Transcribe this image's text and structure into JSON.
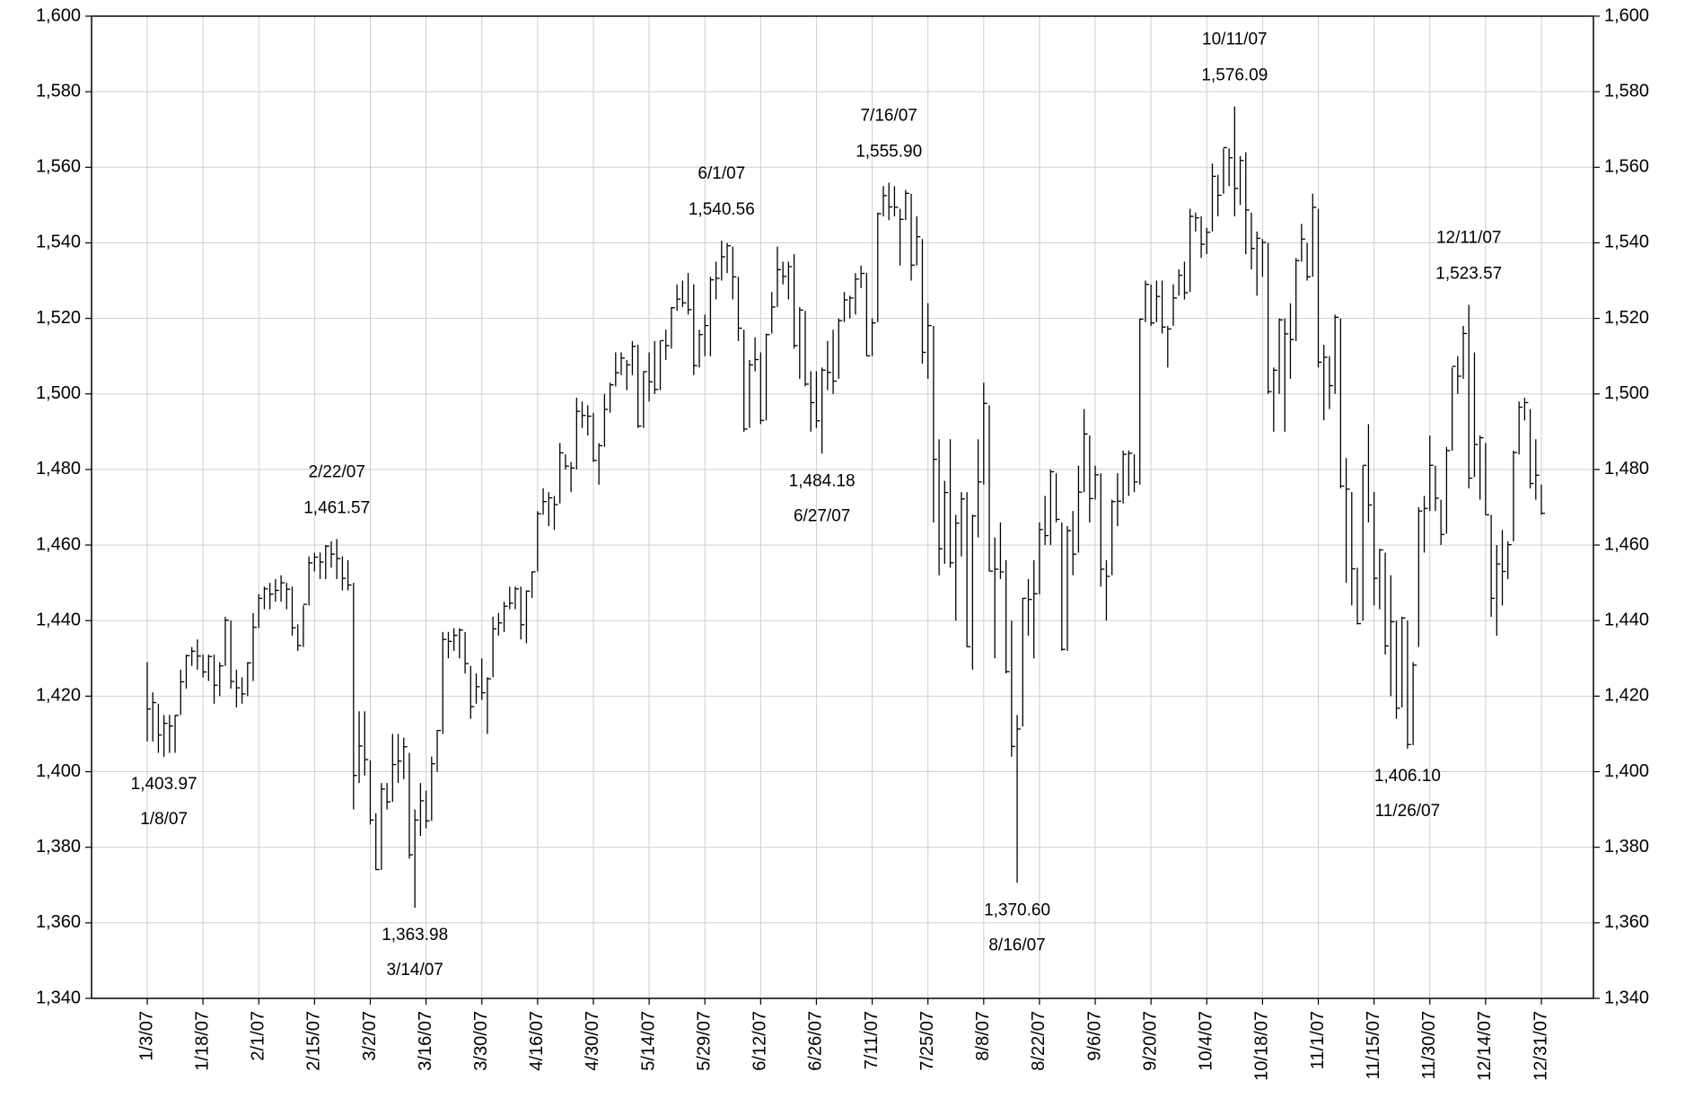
{
  "chart_data": {
    "type": "hlc",
    "color": "#000000",
    "grid": true,
    "categories": [
      "1/3/07",
      null,
      null,
      null,
      null,
      null,
      null,
      null,
      null,
      null,
      "1/18/07",
      null,
      null,
      null,
      null,
      null,
      null,
      null,
      null,
      null,
      "2/1/07",
      null,
      null,
      null,
      null,
      null,
      null,
      null,
      null,
      null,
      "2/15/07",
      null,
      null,
      null,
      null,
      null,
      null,
      null,
      null,
      null,
      "3/2/07",
      null,
      null,
      null,
      null,
      null,
      null,
      null,
      null,
      null,
      "3/16/07",
      null,
      null,
      null,
      null,
      null,
      null,
      null,
      null,
      null,
      "3/30/07",
      null,
      null,
      null,
      null,
      null,
      null,
      null,
      null,
      null,
      "4/16/07",
      null,
      null,
      null,
      null,
      null,
      null,
      null,
      null,
      null,
      "4/30/07",
      null,
      null,
      null,
      null,
      null,
      null,
      null,
      null,
      null,
      "5/14/07",
      null,
      null,
      null,
      null,
      null,
      null,
      null,
      null,
      null,
      "5/29/07",
      null,
      null,
      null,
      null,
      null,
      null,
      null,
      null,
      null,
      "6/12/07",
      null,
      null,
      null,
      null,
      null,
      null,
      null,
      null,
      null,
      "6/26/07",
      null,
      null,
      null,
      null,
      null,
      null,
      null,
      null,
      null,
      "7/11/07",
      null,
      null,
      null,
      null,
      null,
      null,
      null,
      null,
      null,
      "7/25/07",
      null,
      null,
      null,
      null,
      null,
      null,
      null,
      null,
      null,
      "8/8/07",
      null,
      null,
      null,
      null,
      null,
      null,
      null,
      null,
      null,
      "8/22/07",
      null,
      null,
      null,
      null,
      null,
      null,
      null,
      null,
      null,
      "9/6/07",
      null,
      null,
      null,
      null,
      null,
      null,
      null,
      null,
      null,
      "9/20/07",
      null,
      null,
      null,
      null,
      null,
      null,
      null,
      null,
      null,
      "10/4/07",
      null,
      null,
      null,
      null,
      null,
      null,
      null,
      null,
      null,
      "10/18/07",
      null,
      null,
      null,
      null,
      null,
      null,
      null,
      null,
      null,
      "11/1/07",
      null,
      null,
      null,
      null,
      null,
      null,
      null,
      null,
      null,
      "11/15/07",
      null,
      null,
      null,
      null,
      null,
      null,
      null,
      null,
      null,
      "11/30/07",
      null,
      null,
      null,
      null,
      null,
      null,
      null,
      null,
      null,
      "12/14/07",
      null,
      null,
      null,
      null,
      null,
      null,
      null,
      null,
      null,
      "12/31/07"
    ],
    "high": [
      1429,
      1421,
      1418,
      1415,
      1415,
      1415,
      1427,
      1431,
      1433,
      1435,
      1431,
      1431,
      1431,
      1429,
      1441,
      1440,
      1427,
      1425,
      1429,
      1442,
      1447,
      1449,
      1450,
      1451,
      1452,
      1450,
      1449,
      1439,
      1444,
      1457,
      1458,
      1458,
      1460,
      1461,
      1461.57,
      1457,
      1456,
      1450,
      1416,
      1416,
      1403,
      1389,
      1397,
      1397,
      1410,
      1410,
      1409,
      1405,
      1390,
      1397,
      1395,
      1404,
      1411,
      1437,
      1437,
      1438,
      1438,
      1437,
      1428,
      1426,
      1430,
      1425,
      1441,
      1442,
      1445,
      1449,
      1449,
      1449,
      1448,
      1453,
      1469,
      1475,
      1474,
      1473,
      1487,
      1484,
      1482,
      1499,
      1498,
      1497,
      1495,
      1487,
      1500,
      1503,
      1511,
      1511,
      1509,
      1514,
      1513,
      1506,
      1511,
      1514,
      1514,
      1517,
      1523,
      1529,
      1530,
      1532,
      1529,
      1517,
      1521,
      1531,
      1535,
      1540.56,
      1540,
      1539,
      1531,
      1517,
      1509,
      1515,
      1511,
      1516,
      1527,
      1539,
      1535,
      1535,
      1537,
      1523,
      1522,
      1506,
      1506,
      1507,
      1514,
      1517,
      1520,
      1527,
      1526,
      1532,
      1534,
      1532,
      1520,
      1548,
      1555,
      1555.9,
      1555,
      1549,
      1554,
      1553,
      1547,
      1541,
      1524,
      1518,
      1488,
      1477,
      1488,
      1468,
      1474,
      1474,
      1468,
      1488,
      1503,
      1497,
      1462,
      1466,
      1456,
      1440,
      1415,
      1446,
      1451,
      1456,
      1466,
      1473,
      1480,
      1479,
      1466,
      1465,
      1469,
      1481,
      1496,
      1489,
      1481,
      1479,
      1456,
      1472,
      1479,
      1485,
      1485,
      1484,
      1520,
      1530,
      1529,
      1530,
      1530,
      1518,
      1529,
      1533,
      1535,
      1549,
      1548,
      1547,
      1544,
      1561,
      1558,
      1565,
      1565,
      1576.09,
      1563,
      1564,
      1548,
      1543,
      1541,
      1540,
      1507,
      1520,
      1520,
      1524,
      1536,
      1545,
      1540,
      1553,
      1549,
      1513,
      1510,
      1521,
      1520,
      1483,
      1474,
      1454,
      1481,
      1492,
      1474,
      1459,
      1458,
      1452,
      1440,
      1441,
      1440,
      1429,
      1470,
      1473,
      1489,
      1481,
      1472,
      1486,
      1507,
      1510,
      1518,
      1523.57,
      1511,
      1489,
      1487,
      1468,
      1460,
      1464,
      1461,
      1485,
      1498,
      1499,
      1496,
      1488,
      1476
    ],
    "low": [
      1408,
      1408,
      1405,
      1403.97,
      1405,
      1405,
      1415,
      1422,
      1428,
      1427,
      1425,
      1424,
      1418,
      1420,
      1428,
      1422,
      1417,
      1418,
      1420,
      1424,
      1438,
      1443,
      1443,
      1445,
      1445,
      1443,
      1436,
      1432,
      1433,
      1444,
      1453,
      1451,
      1451,
      1454,
      1451,
      1448,
      1448,
      1390,
      1397,
      1399,
      1386,
      1374,
      1374,
      1390,
      1392,
      1397,
      1398,
      1377,
      1363.98,
      1383,
      1385,
      1387,
      1400,
      1410,
      1430,
      1432,
      1430,
      1426,
      1414,
      1418,
      1419,
      1410,
      1425,
      1436,
      1437,
      1443,
      1443,
      1435,
      1434,
      1446,
      1453,
      1468,
      1465,
      1464,
      1471,
      1480,
      1474,
      1480,
      1491,
      1489,
      1482,
      1476,
      1486,
      1495,
      1502,
      1505,
      1501,
      1505,
      1491,
      1491,
      1498,
      1500,
      1501,
      1509,
      1512,
      1522,
      1523,
      1521,
      1505,
      1507,
      1510,
      1510,
      1525,
      1530,
      1532,
      1525,
      1514,
      1490,
      1491,
      1506,
      1492,
      1493,
      1516,
      1523,
      1529,
      1525,
      1512,
      1504,
      1502,
      1490,
      1491,
      1484.18,
      1501,
      1500,
      1504,
      1519,
      1520,
      1521,
      1528,
      1510,
      1510,
      1519,
      1547,
      1546,
      1547,
      1534,
      1546,
      1530,
      1534,
      1508,
      1504,
      1466,
      1452,
      1455,
      1454,
      1440,
      1457,
      1433,
      1427,
      1462,
      1476,
      1453,
      1430,
      1451,
      1426,
      1404,
      1370.6,
      1412,
      1436,
      1430,
      1447,
      1460,
      1460,
      1466,
      1432,
      1432,
      1452,
      1458,
      1474,
      1466,
      1472,
      1449,
      1440,
      1452,
      1465,
      1471,
      1473,
      1474,
      1476,
      1519,
      1518,
      1519,
      1516,
      1507,
      1518,
      1526,
      1525,
      1527,
      1543,
      1536,
      1537,
      1543,
      1547,
      1553,
      1555,
      1547,
      1550,
      1537,
      1533,
      1526,
      1531,
      1500,
      1490,
      1500,
      1490,
      1504,
      1514,
      1535,
      1530,
      1531,
      1507,
      1493,
      1496,
      1500,
      1475,
      1450,
      1444,
      1439,
      1440,
      1466,
      1444,
      1443,
      1431,
      1420,
      1414,
      1417,
      1406.1,
      1407,
      1433,
      1458,
      1469,
      1469,
      1460,
      1463,
      1485,
      1500,
      1504,
      1475,
      1478,
      1472,
      1468,
      1441,
      1436,
      1444,
      1451,
      1461,
      1484,
      1493,
      1475,
      1472,
      1468
    ],
    "close": [
      1416.6,
      1418.3,
      1409.7,
      1412.8,
      1412.1,
      1414.9,
      1423.8,
      1430.7,
      1431.9,
      1430.6,
      1426.4,
      1430.5,
      1422.9,
      1428.0,
      1440.1,
      1423.9,
      1422.2,
      1420.6,
      1428.8,
      1438.2,
      1445.9,
      1448.4,
      1447.0,
      1448.0,
      1450.0,
      1448.3,
      1438.1,
      1433.4,
      1444.3,
      1455.3,
      1456.8,
      1455.5,
      1459.7,
      1457.6,
      1456.4,
      1451.2,
      1449.4,
      1399.0,
      1406.8,
      1403.2,
      1387.2,
      1374.1,
      1395.4,
      1392.0,
      1401.9,
      1402.8,
      1406.6,
      1378.0,
      1387.2,
      1392.3,
      1387.0,
      1402.1,
      1410.9,
      1435.0,
      1434.5,
      1436.1,
      1437.5,
      1428.6,
      1417.2,
      1422.5,
      1420.9,
      1424.6,
      1437.8,
      1439.4,
      1443.8,
      1444.6,
      1448.4,
      1438.9,
      1447.8,
      1452.9,
      1468.3,
      1471.5,
      1472.5,
      1470.7,
      1484.4,
      1480.9,
      1480.4,
      1495.4,
      1494.3,
      1494.1,
      1482.4,
      1486.3,
      1495.9,
      1502.4,
      1505.6,
      1509.5,
      1507.7,
      1512.6,
      1491.5,
      1505.9,
      1503.2,
      1501.2,
      1514.1,
      1512.8,
      1522.8,
      1525.1,
      1524.1,
      1522.3,
      1507.5,
      1515.7,
      1518.1,
      1530.2,
      1530.6,
      1536.3,
      1539.2,
      1531.0,
      1517.4,
      1490.7,
      1507.7,
      1509.1,
      1493.0,
      1515.7,
      1523.0,
      1532.9,
      1531.1,
      1533.7,
      1512.8,
      1522.2,
      1502.6,
      1497.7,
      1492.9,
      1506.3,
      1505.7,
      1503.4,
      1519.4,
      1524.9,
      1525.4,
      1530.4,
      1531.9,
      1510.1,
      1518.8,
      1547.7,
      1552.5,
      1549.5,
      1549.4,
      1546.2,
      1553.1,
      1534.1,
      1541.6,
      1511.0,
      1518.1,
      1482.7,
      1459.0,
      1473.9,
      1455.3,
      1465.8,
      1472.2,
      1433.1,
      1467.7,
      1476.7,
      1497.5,
      1453.1,
      1453.6,
      1452.9,
      1426.5,
      1406.7,
      1411.3,
      1445.9,
      1445.6,
      1447.1,
      1464.1,
      1462.5,
      1479.4,
      1466.8,
      1432.4,
      1463.8,
      1457.6,
      1474.0,
      1489.4,
      1472.3,
      1478.6,
      1453.6,
      1451.7,
      1471.5,
      1471.6,
      1484.0,
      1484.3,
      1476.7,
      1519.8,
      1529.0,
      1518.8,
      1525.8,
      1517.7,
      1517.2,
      1525.4,
      1531.4,
      1526.8,
      1547.0,
      1546.6,
      1539.6,
      1542.8,
      1557.6,
      1552.6,
      1565.2,
      1562.5,
      1554.4,
      1561.8,
      1548.7,
      1538.5,
      1541.2,
      1540.1,
      1500.6,
      1506.3,
      1519.6,
      1515.9,
      1514.4,
      1535.3,
      1541.0,
      1531.0,
      1549.4,
      1508.4,
      1509.7,
      1502.2,
      1520.3,
      1475.6,
      1474.8,
      1453.7,
      1439.2,
      1481.1,
      1470.6,
      1451.2,
      1458.7,
      1433.3,
      1439.7,
      1416.8,
      1440.7,
      1407.2,
      1428.2,
      1469.0,
      1469.7,
      1481.1,
      1472.4,
      1462.8,
      1485.0,
      1507.3,
      1504.7,
      1516.0,
      1477.7,
      1486.6,
      1488.4,
      1468.0,
      1445.9,
      1455.0,
      1453.0,
      1460.1,
      1484.5,
      1496.5,
      1497.7,
      1476.3,
      1478.5,
      1468.4
    ],
    "ylim": [
      1340,
      1600
    ],
    "yticks": [
      {
        "value": 1340,
        "label": "1,340"
      },
      {
        "value": 1360,
        "label": "1,360"
      },
      {
        "value": 1380,
        "label": "1,380"
      },
      {
        "value": 1400,
        "label": "1,400"
      },
      {
        "value": 1420,
        "label": "1,420"
      },
      {
        "value": 1440,
        "label": "1,440"
      },
      {
        "value": 1460,
        "label": "1,460"
      },
      {
        "value": 1480,
        "label": "1,480"
      },
      {
        "value": 1500,
        "label": "1,500"
      },
      {
        "value": 1520,
        "label": "1,520"
      },
      {
        "value": 1540,
        "label": "1,540"
      },
      {
        "value": 1560,
        "label": "1,560"
      },
      {
        "value": 1580,
        "label": "1,580"
      },
      {
        "value": 1600,
        "label": "1,600"
      }
    ],
    "y2lim": [
      1340,
      1600
    ],
    "y2ticks": [
      {
        "value": 1340,
        "label": "1,340"
      },
      {
        "value": 1360,
        "label": "1,360"
      },
      {
        "value": 1380,
        "label": "1,380"
      },
      {
        "value": 1400,
        "label": "1,400"
      },
      {
        "value": 1420,
        "label": "1,420"
      },
      {
        "value": 1440,
        "label": "1,440"
      },
      {
        "value": 1460,
        "label": "1,460"
      },
      {
        "value": 1480,
        "label": "1,480"
      },
      {
        "value": 1500,
        "label": "1,500"
      },
      {
        "value": 1520,
        "label": "1,520"
      },
      {
        "value": 1540,
        "label": "1,540"
      },
      {
        "value": 1560,
        "label": "1,560"
      },
      {
        "value": 1580,
        "label": "1,580"
      },
      {
        "value": 1600,
        "label": "1,600"
      }
    ],
    "annotations": [
      {
        "date": "1/8/07",
        "value": 1403.97,
        "label": "1,403.97"
      },
      {
        "date": "2/22/07",
        "value": 1461.57,
        "label": "1,461.57"
      },
      {
        "date": "3/14/07",
        "value": 1363.98,
        "label": "1,363.98"
      },
      {
        "date": "6/1/07",
        "value": 1540.56,
        "label": "1,540.56"
      },
      {
        "date": "6/27/07",
        "value": 1484.18,
        "label": "1,484.18"
      },
      {
        "date": "7/16/07",
        "value": 1555.9,
        "label": "1,555.90"
      },
      {
        "date": "8/16/07",
        "value": 1370.6,
        "label": "1,370.60"
      },
      {
        "date": "10/11/07",
        "value": 1576.09,
        "label": "1,576.09"
      },
      {
        "date": "11/26/07",
        "value": 1406.1,
        "label": "1,406.10"
      },
      {
        "date": "12/11/07",
        "value": 1523.57,
        "label": "1,523.57"
      }
    ]
  }
}
